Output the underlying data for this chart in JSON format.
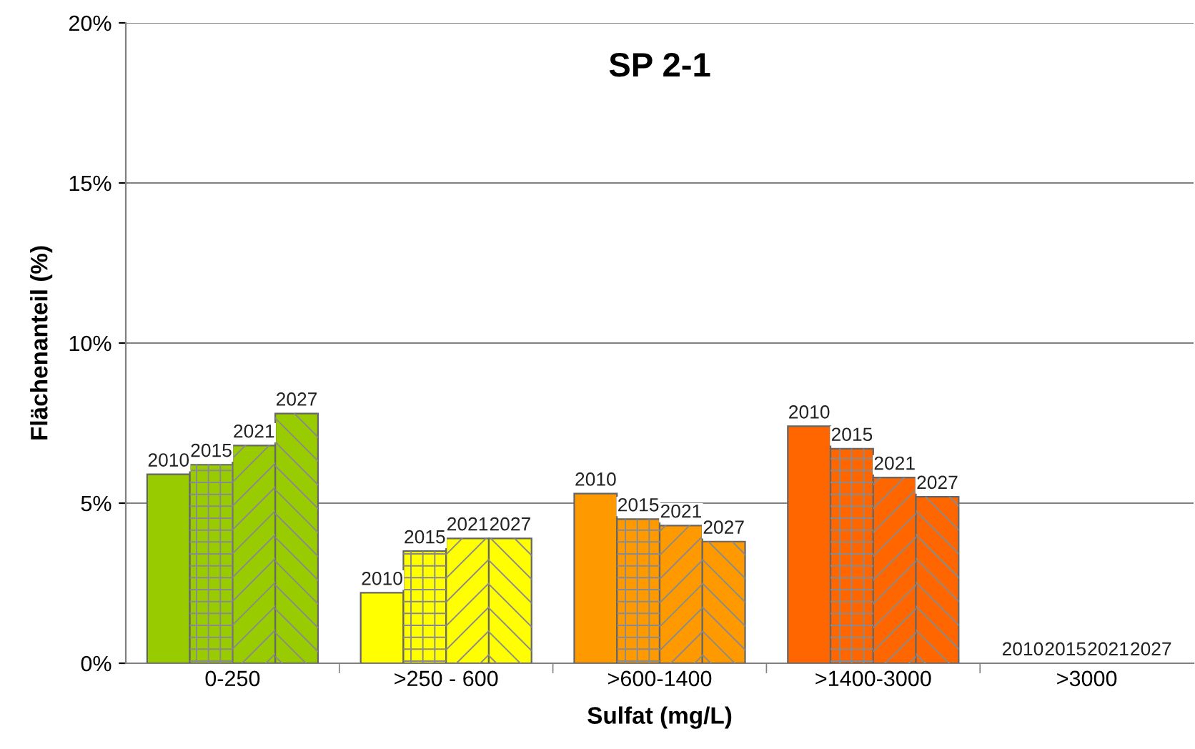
{
  "chart_data": {
    "type": "bar",
    "title": "SP 2-1",
    "xlabel": "Sulfat (mg/L)",
    "ylabel": "Flächenanteil (%)",
    "categories": [
      "0-250",
      ">250 - 600",
      ">600-1400",
      ">1400-3000",
      ">3000"
    ],
    "series": [
      {
        "name": "2010",
        "colors": [
          "#99cc00",
          "#ffff00",
          "#ff9900",
          "#ff6600",
          "#ff6600"
        ],
        "values": [
          5.9,
          2.2,
          5.3,
          7.4,
          0
        ]
      },
      {
        "name": "2015",
        "colors": [
          "#99cc00",
          "#ffff00",
          "#ff9900",
          "#ff6600",
          "#ff6600"
        ],
        "values": [
          6.2,
          3.5,
          4.5,
          6.7,
          0
        ]
      },
      {
        "name": "2021",
        "colors": [
          "#99cc00",
          "#ffff00",
          "#ff9900",
          "#ff6600",
          "#ff6600"
        ],
        "values": [
          6.8,
          3.9,
          4.3,
          5.8,
          0
        ]
      },
      {
        "name": "2027",
        "colors": [
          "#99cc00",
          "#ffff00",
          "#ff9900",
          "#ff6600",
          "#ff6600"
        ],
        "values": [
          7.8,
          3.9,
          3.8,
          5.2,
          0
        ]
      }
    ],
    "ylim": [
      0,
      20
    ],
    "yticks": [
      {
        "value": 0,
        "label": "0%"
      },
      {
        "value": 5,
        "label": "5%"
      },
      {
        "value": 10,
        "label": "10%"
      },
      {
        "value": 15,
        "label": "15%"
      },
      {
        "value": 20,
        "label": "20%"
      }
    ],
    "grid": "y",
    "legend": false
  }
}
